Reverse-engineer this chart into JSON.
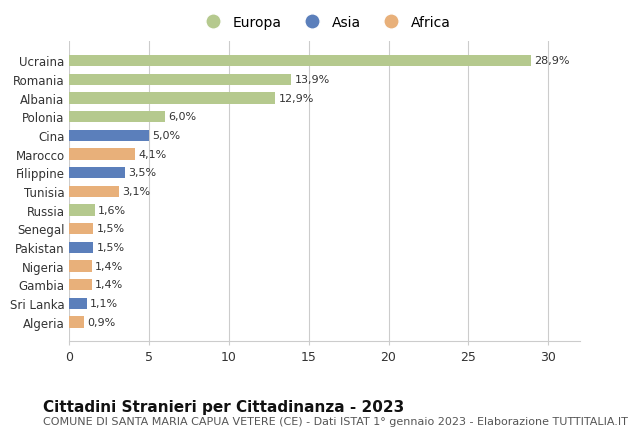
{
  "countries": [
    "Algeria",
    "Sri Lanka",
    "Gambia",
    "Nigeria",
    "Pakistan",
    "Senegal",
    "Russia",
    "Tunisia",
    "Filippine",
    "Marocco",
    "Cina",
    "Polonia",
    "Albania",
    "Romania",
    "Ucraina"
  ],
  "values": [
    0.9,
    1.1,
    1.4,
    1.4,
    1.5,
    1.5,
    1.6,
    3.1,
    3.5,
    4.1,
    5.0,
    6.0,
    12.9,
    13.9,
    28.9
  ],
  "labels": [
    "0,9%",
    "1,1%",
    "1,4%",
    "1,4%",
    "1,5%",
    "1,5%",
    "1,6%",
    "3,1%",
    "3,5%",
    "4,1%",
    "5,0%",
    "6,0%",
    "12,9%",
    "13,9%",
    "28,9%"
  ],
  "continents": [
    "Africa",
    "Asia",
    "Africa",
    "Africa",
    "Asia",
    "Africa",
    "Europa",
    "Africa",
    "Asia",
    "Africa",
    "Asia",
    "Europa",
    "Europa",
    "Europa",
    "Europa"
  ],
  "continent_colors": {
    "Europa": "#b5c98e",
    "Asia": "#5b7fbb",
    "Africa": "#e8b07a"
  },
  "legend_items": [
    "Europa",
    "Asia",
    "Africa"
  ],
  "title": "Cittadini Stranieri per Cittadinanza - 2023",
  "subtitle": "COMUNE DI SANTA MARIA CAPUA VETERE (CE) - Dati ISTAT 1° gennaio 2023 - Elaborazione TUTTITALIA.IT",
  "xlim": [
    0,
    32
  ],
  "xticks": [
    0,
    5,
    10,
    15,
    20,
    25,
    30
  ],
  "background_color": "#ffffff",
  "grid_color": "#cccccc",
  "bar_height": 0.6,
  "title_fontsize": 11,
  "subtitle_fontsize": 8,
  "label_fontsize": 8,
  "ytick_fontsize": 8.5,
  "xtick_fontsize": 9
}
